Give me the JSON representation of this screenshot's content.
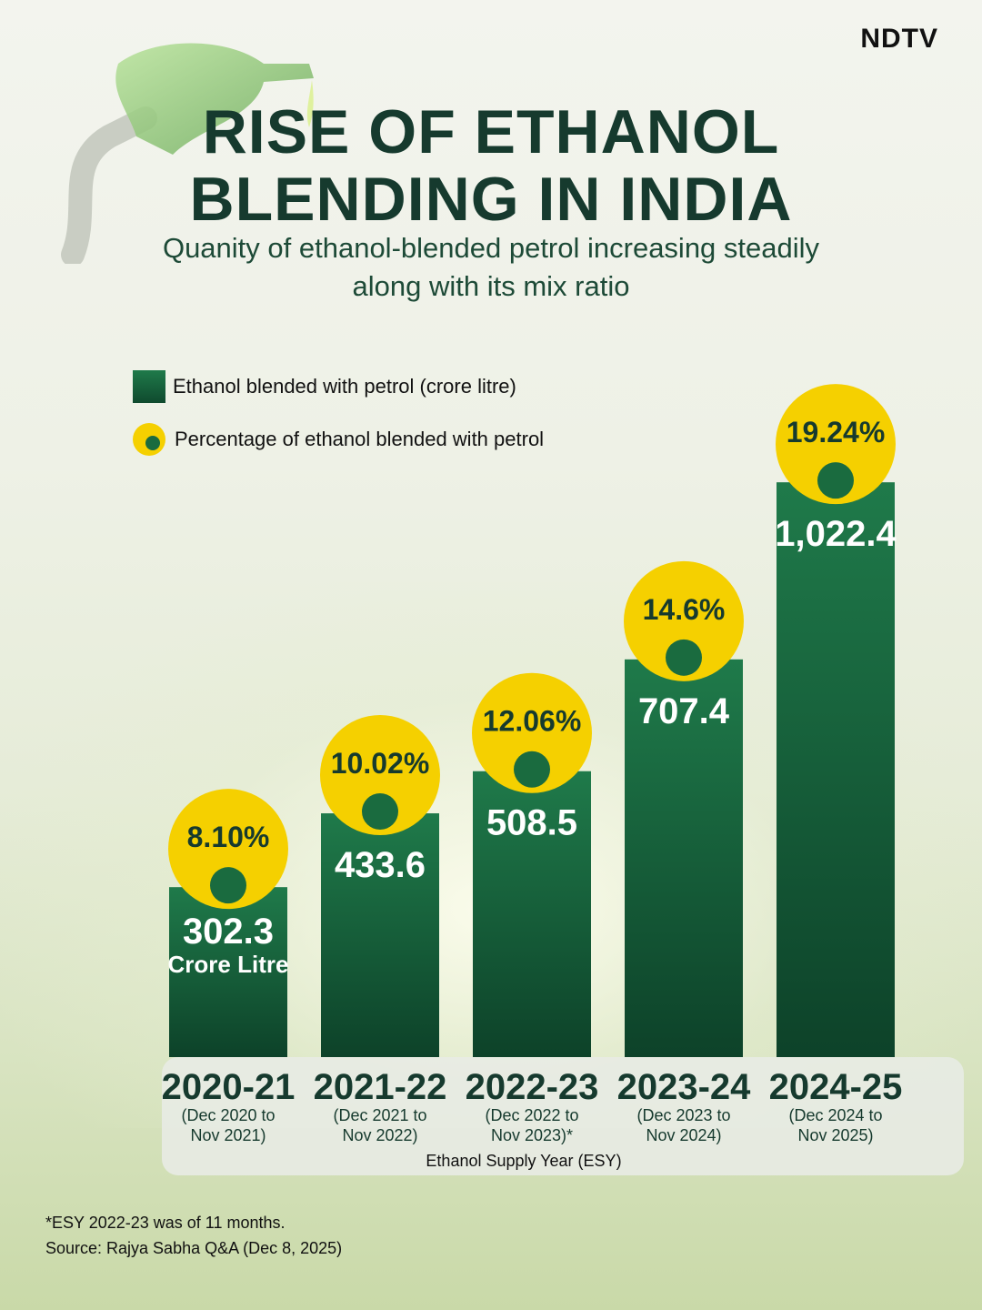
{
  "brand": {
    "logo_text": "NDTV"
  },
  "header": {
    "title_line1": "RISE OF ETHANOL",
    "title_line2": "BLENDING IN INDIA",
    "subtitle_line1": "Quanity of ethanol-blended petrol increasing steadily",
    "subtitle_line2": "along with its mix ratio"
  },
  "legend": {
    "bar_label": "Ethanol blended with petrol (crore litre)",
    "dot_label": "Percentage of ethanol blended with petrol"
  },
  "colors": {
    "bar_top": "#1f7a4a",
    "bar_bottom": "#0f4a2e",
    "circle": "#f5d000",
    "circle_dot": "#1a6b3f",
    "axis_band": "#e8ebe4"
  },
  "chart_data": {
    "type": "bar",
    "title": "RISE OF ETHANOL BLENDING IN INDIA",
    "xlabel": "Ethanol Supply Year (ESY)",
    "ylabel": "Ethanol blended with petrol (crore litre)",
    "ylim": [
      0,
      1100
    ],
    "categories": [
      "2020-21",
      "2021-22",
      "2022-23",
      "2023-24",
      "2024-25"
    ],
    "ranges_line1": [
      "(Dec 2020 to",
      "(Dec 2021 to",
      "(Dec 2022 to",
      "(Dec 2023 to",
      "(Dec 2024 to"
    ],
    "ranges_line2": [
      "Nov 2021)",
      "Nov 2022)",
      "Nov 2023)*",
      "Nov 2024)",
      "Nov 2025)"
    ],
    "series": [
      {
        "name": "Ethanol blended with petrol (crore litre)",
        "values": [
          302.3,
          433.6,
          508.5,
          707.4,
          1022.4
        ],
        "labels": [
          "302.3",
          "433.6",
          "508.5",
          "707.4",
          "1,022.4"
        ]
      },
      {
        "name": "Percentage of ethanol blended with petrol",
        "values": [
          8.1,
          10.02,
          12.06,
          14.6,
          19.24
        ],
        "labels": [
          "8.10%",
          "10.02%",
          "12.06%",
          "14.6%",
          "19.24%"
        ]
      }
    ],
    "first_bar_unit": "Crore Litre"
  },
  "footnote": {
    "note": "*ESY 2022-23 was of 11 months.",
    "source": "Source: Rajya Sabha Q&A (Dec 8, 2025)"
  }
}
